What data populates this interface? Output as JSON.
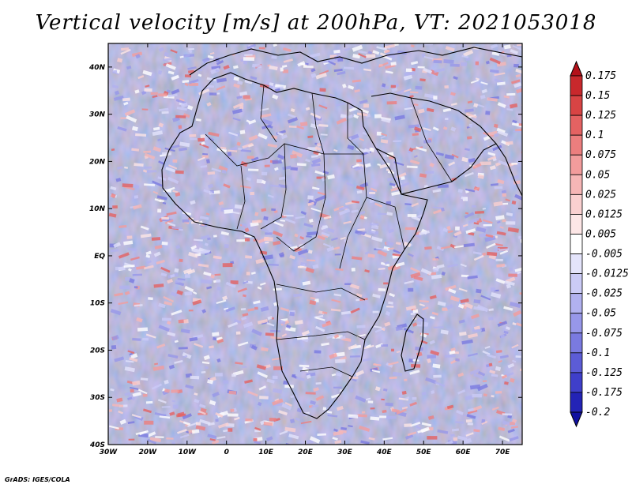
{
  "title": "Vertical velocity [m/s] at 200hPa, VT: 2021053018",
  "credit": "GrADS: IGES/COLA",
  "chart_data": {
    "type": "heatmap",
    "title": "Vertical velocity [m/s] at 200hPa, VT: 2021053018",
    "variable": "Vertical velocity",
    "units": "m/s",
    "level": "200hPa",
    "valid_time": "2021053018",
    "lon_range": [
      -30,
      75
    ],
    "lat_range": [
      -40,
      45
    ],
    "x_ticks": [
      "30W",
      "20W",
      "10W",
      "0",
      "10E",
      "20E",
      "30E",
      "40E",
      "50E",
      "60E",
      "70E"
    ],
    "y_ticks": [
      "40S",
      "30S",
      "20S",
      "10S",
      "EQ",
      "10N",
      "20N",
      "30N",
      "40N"
    ],
    "colorbar": {
      "labels": [
        "0.175",
        "0.15",
        "0.125",
        "0.1",
        "0.075",
        "0.05",
        "0.025",
        "0.0125",
        "0.005",
        "-0.005",
        "-0.0125",
        "-0.025",
        "-0.05",
        "-0.075",
        "-0.1",
        "-0.125",
        "-0.175",
        "-0.2"
      ],
      "colors": [
        "#b4111a",
        "#c8282c",
        "#d84444",
        "#e46262",
        "#ec7e7e",
        "#f29c9c",
        "#f6b6b6",
        "#fad0d0",
        "#fde6e6",
        "#ffffff",
        "#e4e4fb",
        "#cbcbf6",
        "#b1b1ef",
        "#9797e9",
        "#7a7ae0",
        "#5c5cd6",
        "#3f3fca",
        "#2323b6",
        "#1010a0"
      ],
      "extend": "both",
      "orientation": "vertical",
      "position": "right"
    }
  }
}
